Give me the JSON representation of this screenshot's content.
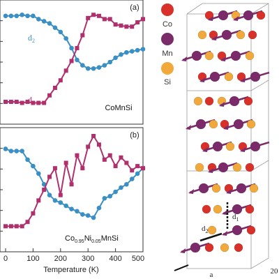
{
  "colors": {
    "d1": "#b0306e",
    "d2": "#3a8fc4",
    "co": "#d9302a",
    "mn": "#7b2b6a",
    "si": "#f2a93b",
    "axis": "#333333",
    "box": "#888888"
  },
  "shared_x_axis": {
    "label": "Temperature (K)",
    "ticks": [
      "0",
      "100",
      "200",
      "300",
      "400",
      "500"
    ]
  },
  "chart_data": [
    {
      "type": "line",
      "panel": "(a)",
      "compound": "CoMnSi",
      "x_range": [
        0,
        500
      ],
      "y_range": [
        0,
        1
      ],
      "x_ticks": [
        0,
        100,
        200,
        300,
        400,
        500
      ],
      "series": [
        {
          "name": "d2",
          "color": "#3a8fc4",
          "marker": "circle",
          "x": [
            0,
            20,
            40,
            60,
            80,
            100,
            120,
            140,
            160,
            180,
            200,
            220,
            240,
            260,
            280,
            300,
            320,
            340,
            360,
            380,
            400,
            420,
            440,
            460,
            480,
            500
          ],
          "y": [
            0.93,
            0.93,
            0.93,
            0.94,
            0.93,
            0.93,
            0.9,
            0.88,
            0.86,
            0.82,
            0.78,
            0.72,
            0.63,
            0.52,
            0.47,
            0.44,
            0.44,
            0.45,
            0.47,
            0.5,
            0.54,
            0.57,
            0.59,
            0.6,
            0.61,
            0.62
          ]
        },
        {
          "name": "d1",
          "color": "#b0306e",
          "marker": "square",
          "x": [
            0,
            20,
            40,
            60,
            80,
            100,
            120,
            140,
            160,
            180,
            200,
            220,
            240,
            260,
            280,
            300,
            320,
            340,
            360,
            380,
            400,
            420,
            440,
            460,
            480,
            500
          ],
          "y": [
            0.13,
            0.13,
            0.13,
            0.12,
            0.13,
            0.12,
            0.12,
            0.12,
            0.19,
            0.26,
            0.33,
            0.42,
            0.51,
            0.63,
            0.75,
            0.91,
            0.94,
            0.93,
            0.9,
            0.9,
            0.85,
            0.84,
            0.83,
            0.83,
            0.87,
            0.9
          ]
        }
      ]
    },
    {
      "type": "line",
      "panel": "(b)",
      "compound": "Co0.95Ni0.05MnSi",
      "x_range": [
        0,
        500
      ],
      "y_range": [
        0,
        1
      ],
      "x_ticks": [
        0,
        100,
        200,
        300,
        400,
        500
      ],
      "series": [
        {
          "name": "d2",
          "color": "#3a8fc4",
          "marker": "circle",
          "x": [
            0,
            20,
            40,
            60,
            80,
            100,
            120,
            140,
            160,
            180,
            200,
            220,
            240,
            260,
            280,
            300,
            320,
            340,
            360,
            380,
            400,
            420,
            440,
            460,
            480,
            500
          ],
          "y": [
            0.88,
            0.86,
            0.86,
            0.86,
            0.78,
            0.72,
            0.65,
            0.55,
            0.45,
            0.4,
            0.38,
            0.35,
            0.32,
            0.3,
            0.27,
            0.26,
            0.24,
            0.33,
            0.42,
            0.44,
            0.48,
            0.52,
            0.55,
            0.6,
            0.65,
            0.7
          ]
        },
        {
          "name": "d1",
          "color": "#b0306e",
          "marker": "square",
          "x": [
            0,
            20,
            40,
            60,
            80,
            100,
            120,
            140,
            160,
            180,
            200,
            220,
            240,
            260,
            280,
            300,
            320,
            340,
            360,
            380,
            400,
            420,
            440,
            460,
            480,
            500
          ],
          "y": [
            0.16,
            0.16,
            0.16,
            0.16,
            0.2,
            0.28,
            0.4,
            0.5,
            0.62,
            0.7,
            0.45,
            0.75,
            0.55,
            0.82,
            0.7,
            0.9,
            1.0,
            0.92,
            0.78,
            0.82,
            0.72,
            0.8,
            0.75,
            0.68,
            0.72,
            0.7
          ]
        }
      ]
    }
  ],
  "labels": {
    "panel_a": "(a)",
    "panel_b": "(b)",
    "compound_a": "CoMnSi",
    "compound_b_base1": "Co",
    "compound_b_sub1": "0.95",
    "compound_b_base2": "Ni",
    "compound_b_sub2": "0.05",
    "compound_b_base3": "MnSi",
    "d1_base": "d",
    "d1_sub": "1",
    "d2_base": "d",
    "d2_sub": "2"
  },
  "structure": {
    "legend": [
      {
        "label": "Co",
        "color": "#d9302a"
      },
      {
        "label": "Mn",
        "color": "#7b2b6a"
      },
      {
        "label": "Si",
        "color": "#f2a93b"
      }
    ],
    "d1_label_base": "d",
    "d1_label_sub": "1",
    "d_label_base": "d",
    "d_label_sub": "2",
    "axis_a": "a",
    "corner_text": "20"
  }
}
